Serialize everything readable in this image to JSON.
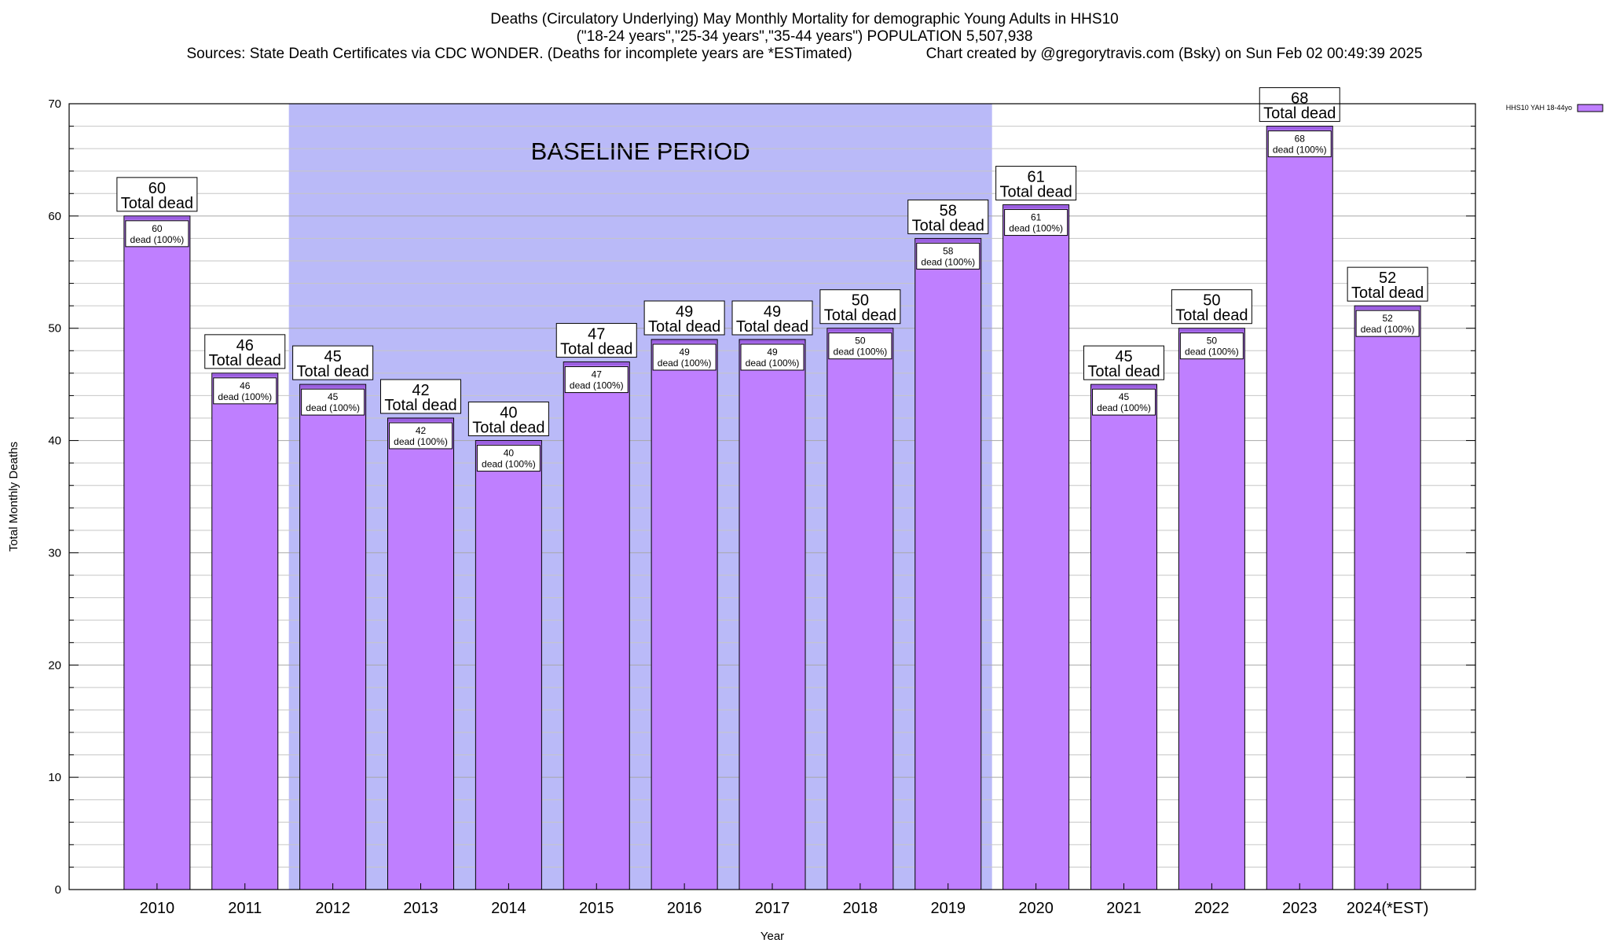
{
  "chart_data": {
    "type": "bar",
    "title": "Deaths (Circulatory Underlying) May Monthly Mortality for demographic Young Adults in HHS10",
    "subtitle": "(\"18-24 years\",\"25-34 years\",\"35-44 years\") POPULATION 5,507,938",
    "source": "Sources: State Death Certificates via CDC WONDER. (Deaths for incomplete years are *ESTimated)",
    "credit": "Chart created by @gregorytravis.com (Bsky) on Sun Feb 02 00:49:39 2025",
    "xlabel": "Year",
    "ylabel": "Total Monthly Deaths",
    "ylim": [
      0,
      70
    ],
    "yticks": [
      0,
      10,
      20,
      30,
      40,
      50,
      60,
      70
    ],
    "minor_tick_step": 2,
    "grid": true,
    "legend": {
      "label": "HHS10 YAH 18-44yo",
      "position": "top-right"
    },
    "baseline": {
      "label": "BASELINE PERIOD",
      "from": "2012",
      "to": "2019",
      "color": "#babaf8"
    },
    "bar_color": "#bf7fff",
    "bar_top_color": "#9b5fe0",
    "categories": [
      "2010",
      "2011",
      "2012",
      "2013",
      "2014",
      "2015",
      "2016",
      "2017",
      "2018",
      "2019",
      "2020",
      "2021",
      "2022",
      "2023",
      "2024(*EST)"
    ],
    "values": [
      60,
      46,
      45,
      42,
      40,
      47,
      49,
      49,
      50,
      58,
      61,
      45,
      50,
      68,
      52
    ],
    "total_label": "Total dead",
    "inner_label": "dead (100%)"
  }
}
